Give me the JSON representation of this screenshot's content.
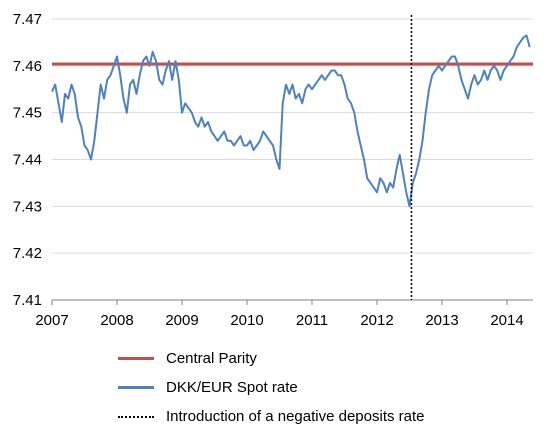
{
  "chart_data": {
    "type": "line",
    "title": "",
    "xlabel": "",
    "ylabel": "",
    "xlim": [
      2007.0,
      2014.4
    ],
    "ylim": [
      7.41,
      7.47
    ],
    "grid": "horizontal",
    "legend_position": "bottom",
    "x_ticks": [
      "2007",
      "2008",
      "2009",
      "2010",
      "2011",
      "2012",
      "2013",
      "2014"
    ],
    "y_ticks": [
      "7.47",
      "7.46",
      "7.45",
      "7.44",
      "7.43",
      "7.42",
      "7.41"
    ],
    "colors": {
      "central_parity": "#c0504d",
      "spot": "#4f81bd",
      "vline": "#000000",
      "grid": "#d9d9d9"
    },
    "series": [
      {
        "name": "Central Parity",
        "kind": "hline",
        "y": 7.46038
      },
      {
        "name": "DKK/EUR Spot rate",
        "kind": "line",
        "x": [
          2007.0,
          2007.05,
          2007.1,
          2007.15,
          2007.2,
          2007.25,
          2007.3,
          2007.35,
          2007.4,
          2007.45,
          2007.5,
          2007.55,
          2007.6,
          2007.65,
          2007.7,
          2007.75,
          2007.8,
          2007.85,
          2007.9,
          2007.95,
          2008.0,
          2008.05,
          2008.1,
          2008.15,
          2008.2,
          2008.25,
          2008.3,
          2008.35,
          2008.4,
          2008.45,
          2008.5,
          2008.55,
          2008.6,
          2008.65,
          2008.7,
          2008.75,
          2008.8,
          2008.85,
          2008.9,
          2008.95,
          2009.0,
          2009.05,
          2009.1,
          2009.15,
          2009.2,
          2009.25,
          2009.3,
          2009.35,
          2009.4,
          2009.45,
          2009.5,
          2009.55,
          2009.6,
          2009.65,
          2009.7,
          2009.75,
          2009.8,
          2009.85,
          2009.9,
          2009.95,
          2010.0,
          2010.05,
          2010.1,
          2010.15,
          2010.2,
          2010.25,
          2010.3,
          2010.35,
          2010.4,
          2010.45,
          2010.5,
          2010.55,
          2010.6,
          2010.65,
          2010.7,
          2010.75,
          2010.8,
          2010.85,
          2010.9,
          2010.95,
          2011.0,
          2011.05,
          2011.1,
          2011.15,
          2011.2,
          2011.25,
          2011.3,
          2011.35,
          2011.4,
          2011.45,
          2011.5,
          2011.55,
          2011.6,
          2011.65,
          2011.7,
          2011.75,
          2011.8,
          2011.85,
          2011.9,
          2011.95,
          2012.0,
          2012.05,
          2012.1,
          2012.15,
          2012.2,
          2012.25,
          2012.3,
          2012.35,
          2012.4,
          2012.45,
          2012.5,
          2012.55,
          2012.6,
          2012.65,
          2012.7,
          2012.75,
          2012.8,
          2012.85,
          2012.9,
          2012.95,
          2013.0,
          2013.05,
          2013.1,
          2013.15,
          2013.2,
          2013.25,
          2013.3,
          2013.35,
          2013.4,
          2013.45,
          2013.5,
          2013.55,
          2013.6,
          2013.65,
          2013.7,
          2013.75,
          2013.8,
          2013.85,
          2013.9,
          2013.95,
          2014.0,
          2014.05,
          2014.1,
          2014.15,
          2014.2,
          2014.25,
          2014.3,
          2014.35
        ],
        "values": [
          7.4545,
          7.456,
          7.452,
          7.448,
          7.454,
          7.453,
          7.456,
          7.454,
          7.449,
          7.447,
          7.443,
          7.442,
          7.44,
          7.444,
          7.45,
          7.456,
          7.453,
          7.457,
          7.458,
          7.46,
          7.462,
          7.458,
          7.453,
          7.45,
          7.456,
          7.457,
          7.454,
          7.458,
          7.461,
          7.462,
          7.46,
          7.463,
          7.461,
          7.457,
          7.456,
          7.459,
          7.461,
          7.457,
          7.461,
          7.457,
          7.45,
          7.452,
          7.451,
          7.45,
          7.448,
          7.447,
          7.449,
          7.447,
          7.448,
          7.446,
          7.445,
          7.444,
          7.445,
          7.446,
          7.444,
          7.444,
          7.443,
          7.444,
          7.445,
          7.443,
          7.443,
          7.444,
          7.442,
          7.443,
          7.444,
          7.446,
          7.445,
          7.444,
          7.443,
          7.44,
          7.438,
          7.452,
          7.456,
          7.454,
          7.456,
          7.453,
          7.454,
          7.452,
          7.455,
          7.456,
          7.455,
          7.456,
          7.457,
          7.458,
          7.457,
          7.458,
          7.459,
          7.459,
          7.458,
          7.458,
          7.456,
          7.453,
          7.452,
          7.45,
          7.446,
          7.443,
          7.44,
          7.436,
          7.435,
          7.434,
          7.433,
          7.436,
          7.435,
          7.433,
          7.435,
          7.434,
          7.438,
          7.441,
          7.437,
          7.433,
          7.43,
          7.435,
          7.437,
          7.44,
          7.444,
          7.45,
          7.455,
          7.458,
          7.459,
          7.46,
          7.459,
          7.46,
          7.461,
          7.462,
          7.462,
          7.46,
          7.457,
          7.455,
          7.453,
          7.456,
          7.458,
          7.456,
          7.457,
          7.459,
          7.457,
          7.459,
          7.46,
          7.459,
          7.457,
          7.459,
          7.46,
          7.461,
          7.462,
          7.464,
          7.465,
          7.466,
          7.4665,
          7.464
        ]
      },
      {
        "name": "Introduction of a negative deposits rate",
        "kind": "vline",
        "x": 2012.53
      }
    ]
  }
}
